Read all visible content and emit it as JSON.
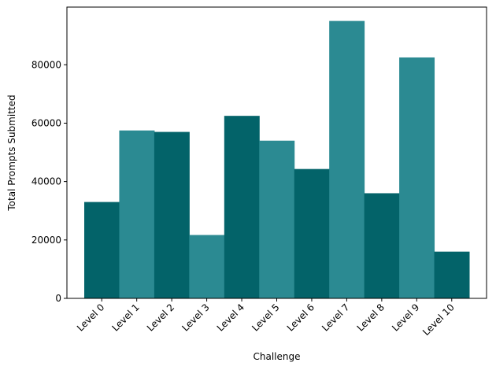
{
  "chart_data": {
    "type": "bar",
    "title": "",
    "xlabel": "Challenge",
    "ylabel": "Total Prompts Submitted",
    "categories": [
      "Level 0",
      "Level 1",
      "Level 2",
      "Level 3",
      "Level 4",
      "Level 5",
      "Level 6",
      "Level 7",
      "Level 8",
      "Level 9",
      "Level 10"
    ],
    "values": [
      33000,
      57500,
      57000,
      21700,
      62500,
      54000,
      44300,
      95000,
      36000,
      82500,
      16000
    ],
    "bar_colors": [
      "#036369",
      "#2b8a92",
      "#036369",
      "#2b8a92",
      "#036369",
      "#2b8a92",
      "#036369",
      "#2b8a92",
      "#036369",
      "#2b8a92",
      "#036369"
    ],
    "yticks": [
      0,
      20000,
      40000,
      60000,
      80000
    ],
    "ylim": [
      0,
      99750
    ],
    "grid": false,
    "legend": "none"
  }
}
